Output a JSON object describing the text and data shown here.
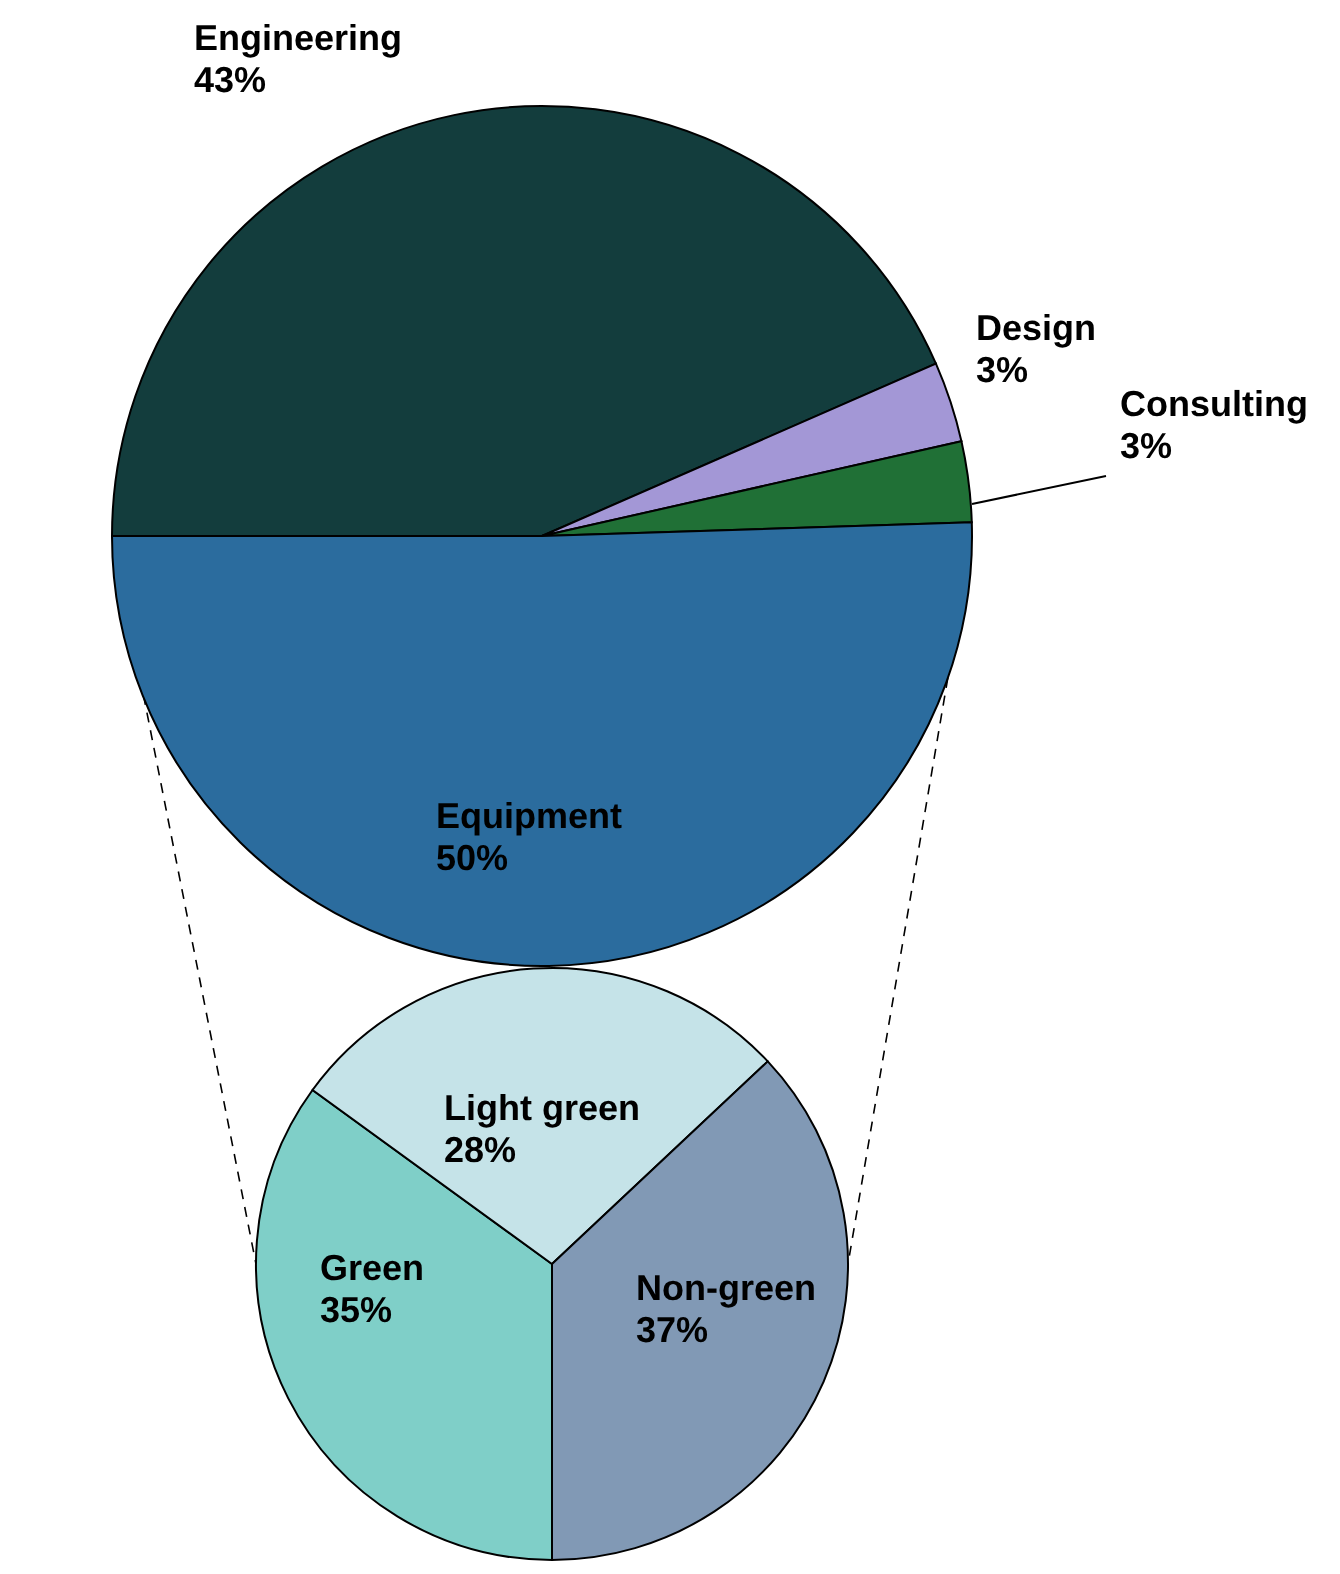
{
  "chart_data": [
    {
      "type": "pie",
      "categories": [
        "Engineering",
        "Design",
        "Consulting",
        "Equipment"
      ],
      "values": [
        43,
        3,
        3,
        50
      ],
      "value_labels": [
        "43%",
        "3%",
        "3%",
        "50%"
      ],
      "colors": [
        "#133d3d",
        "#a397d6",
        "#207036",
        "#2b6c9e"
      ]
    },
    {
      "type": "pie",
      "categories": [
        "Green",
        "Light green",
        "Non-green"
      ],
      "values": [
        35,
        28,
        37
      ],
      "value_labels": [
        "35%",
        "28%",
        "37%"
      ],
      "colors": [
        "#7fcfc8",
        "#c5e3e8",
        "#8199b5"
      ]
    }
  ]
}
